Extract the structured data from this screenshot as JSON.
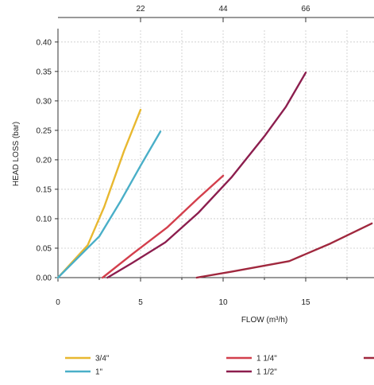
{
  "chart_data": {
    "type": "line",
    "xlabel": "FLOW (m³/h)",
    "ylabel": "HEAD LOSS (bar)",
    "xlim": [
      0,
      19
    ],
    "ylim": [
      0,
      0.42
    ],
    "x_ticks": [
      0,
      5,
      10,
      15
    ],
    "y_ticks": [
      0.0,
      0.05,
      0.1,
      0.15,
      0.2,
      0.25,
      0.3,
      0.35,
      0.4
    ],
    "y_tick_labels": [
      "0.00",
      "0.05",
      "0.10",
      "0.15",
      "0.20",
      "0.25",
      "0.30",
      "0.35",
      "0.40"
    ],
    "x2_ticks": [
      {
        "label": "22",
        "x": 5
      },
      {
        "label": "44",
        "x": 10
      },
      {
        "label": "66",
        "x": 15
      }
    ],
    "grid": true,
    "legend_position": "bottom",
    "series": [
      {
        "name": "3/4\"",
        "color": "#E8B830",
        "points": [
          [
            0,
            0
          ],
          [
            1.8,
            0.055
          ],
          [
            2.8,
            0.12
          ],
          [
            4.0,
            0.215
          ],
          [
            5.0,
            0.285
          ]
        ]
      },
      {
        "name": "1\"",
        "color": "#4AAFC8",
        "points": [
          [
            0,
            0
          ],
          [
            2.5,
            0.07
          ],
          [
            3.8,
            0.13
          ],
          [
            5.0,
            0.19
          ],
          [
            6.2,
            0.248
          ]
        ]
      },
      {
        "name": "1 1/4\"",
        "color": "#D33F4C",
        "points": [
          [
            2.7,
            0
          ],
          [
            4.5,
            0.04
          ],
          [
            6.6,
            0.085
          ],
          [
            8.5,
            0.135
          ],
          [
            10.0,
            0.173
          ]
        ]
      },
      {
        "name": "1 1/2\"",
        "color": "#8C1E4E",
        "points": [
          [
            3.0,
            0
          ],
          [
            4.5,
            0.025
          ],
          [
            6.5,
            0.06
          ],
          [
            8.5,
            0.11
          ],
          [
            10.5,
            0.17
          ],
          [
            12.5,
            0.24
          ],
          [
            13.8,
            0.29
          ],
          [
            15.0,
            0.348
          ]
        ]
      },
      {
        "name": "",
        "color": "#A0283E",
        "points": [
          [
            8.4,
            0
          ],
          [
            10.5,
            0.01
          ],
          [
            14.0,
            0.028
          ],
          [
            16.5,
            0.058
          ],
          [
            19.0,
            0.092
          ]
        ]
      }
    ]
  }
}
